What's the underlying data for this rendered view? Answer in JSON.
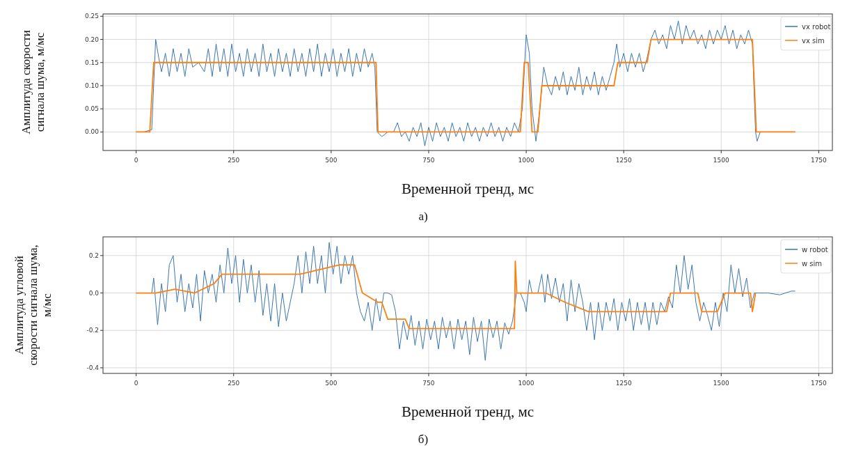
{
  "chart_data": [
    {
      "type": "line",
      "xlabel": "Временной тренд, мс",
      "ylabel": "Амплитуда скорости сигнала шума, м/мс",
      "annotations": [
        "а)"
      ],
      "xlim": [
        -85,
        1785
      ],
      "ylim": [
        -0.04,
        0.255
      ],
      "xticks": [
        0,
        250,
        500,
        750,
        1000,
        1250,
        1500,
        1750
      ],
      "yticks": [
        {
          "value": 0,
          "label": "0.00"
        },
        {
          "value": 0.05,
          "label": "0.05"
        },
        {
          "value": 0.1,
          "label": "0.10"
        },
        {
          "value": 0.15,
          "label": "0.15"
        },
        {
          "value": 0.2,
          "label": "0.20"
        },
        {
          "value": 0.25,
          "label": "0.25"
        }
      ],
      "grid": true,
      "legend": "top right",
      "marker": "none",
      "line_style": "solid",
      "series": [
        {
          "name": "vx robot",
          "color": "#3b76b0",
          "x": [
            0,
            20,
            40,
            50,
            58,
            65,
            75,
            85,
            95,
            105,
            115,
            125,
            135,
            145,
            160,
            175,
            185,
            195,
            205,
            215,
            225,
            235,
            245,
            255,
            265,
            275,
            285,
            295,
            305,
            315,
            325,
            335,
            345,
            355,
            365,
            375,
            385,
            395,
            405,
            415,
            425,
            435,
            445,
            455,
            465,
            475,
            485,
            495,
            505,
            515,
            525,
            535,
            545,
            555,
            565,
            575,
            585,
            595,
            605,
            612,
            618,
            630,
            645,
            660,
            670,
            680,
            690,
            700,
            710,
            720,
            730,
            740,
            750,
            760,
            770,
            780,
            790,
            800,
            810,
            820,
            830,
            840,
            850,
            860,
            870,
            880,
            890,
            900,
            910,
            920,
            930,
            940,
            950,
            960,
            970,
            980,
            990,
            1000,
            1008,
            1015,
            1025,
            1035,
            1045,
            1055,
            1065,
            1075,
            1085,
            1095,
            1105,
            1115,
            1125,
            1135,
            1145,
            1155,
            1165,
            1175,
            1185,
            1195,
            1205,
            1215,
            1225,
            1232,
            1240,
            1250,
            1260,
            1270,
            1280,
            1290,
            1300,
            1310,
            1320,
            1330,
            1340,
            1350,
            1360,
            1370,
            1380,
            1390,
            1400,
            1410,
            1420,
            1430,
            1440,
            1450,
            1460,
            1470,
            1480,
            1490,
            1500,
            1510,
            1520,
            1530,
            1540,
            1550,
            1560,
            1570,
            1580,
            1588,
            1592,
            1600,
            1650,
            1690
          ],
          "values": [
            0,
            0,
            0.005,
            0.2,
            0.16,
            0.13,
            0.17,
            0.12,
            0.18,
            0.13,
            0.17,
            0.12,
            0.18,
            0.14,
            0.15,
            0.13,
            0.18,
            0.12,
            0.19,
            0.13,
            0.18,
            0.12,
            0.19,
            0.13,
            0.17,
            0.12,
            0.18,
            0.13,
            0.17,
            0.12,
            0.19,
            0.13,
            0.17,
            0.12,
            0.18,
            0.13,
            0.17,
            0.12,
            0.18,
            0.13,
            0.17,
            0.12,
            0.18,
            0.13,
            0.19,
            0.12,
            0.17,
            0.13,
            0.18,
            0.12,
            0.17,
            0.13,
            0.18,
            0.12,
            0.17,
            0.13,
            0.18,
            0.14,
            0.17,
            0.14,
            0,
            -0.01,
            0,
            0,
            0.02,
            -0.01,
            0,
            -0.02,
            0.01,
            -0.01,
            0.02,
            -0.03,
            0.01,
            -0.02,
            0.02,
            -0.01,
            0.01,
            -0.02,
            0.02,
            -0.01,
            0.01,
            -0.02,
            0.02,
            -0.01,
            0.01,
            -0.02,
            0.01,
            -0.01,
            0.02,
            -0.01,
            0.01,
            -0.02,
            0.01,
            -0.01,
            0.02,
            0,
            0.05,
            0.21,
            0.17,
            0.05,
            -0.02,
            0.05,
            0.14,
            0.1,
            0.08,
            0.12,
            0.09,
            0.13,
            0.08,
            0.12,
            0.09,
            0.14,
            0.08,
            0.12,
            0.09,
            0.13,
            0.08,
            0.12,
            0.09,
            0.12,
            0.15,
            0.19,
            0.14,
            0.17,
            0.13,
            0.17,
            0.14,
            0.17,
            0.13,
            0.16,
            0.2,
            0.22,
            0.19,
            0.21,
            0.18,
            0.23,
            0.2,
            0.24,
            0.19,
            0.23,
            0.2,
            0.22,
            0.19,
            0.21,
            0.18,
            0.22,
            0.19,
            0.22,
            0.2,
            0.23,
            0.19,
            0.22,
            0.18,
            0.21,
            0.19,
            0.22,
            0.19,
            0,
            -0.02,
            0,
            0,
            0
          ]
        },
        {
          "name": "vx sim",
          "color": "#ff7f0e",
          "x": [
            0,
            35,
            45,
            615,
            620,
            985,
            995,
            1005,
            1015,
            1030,
            1040,
            1225,
            1235,
            1310,
            1320,
            1580,
            1590,
            1690
          ],
          "values": [
            0,
            0,
            0.15,
            0.15,
            0,
            0,
            0.15,
            0.15,
            0,
            0,
            0.1,
            0.1,
            0.15,
            0.15,
            0.2,
            0.2,
            0,
            0
          ]
        }
      ]
    },
    {
      "type": "line",
      "xlabel": "Временной тренд, мс",
      "ylabel": "Амплитуда угловой скорости сигнала шума, м/мс",
      "annotations": [
        "б)"
      ],
      "xlim": [
        -85,
        1785
      ],
      "ylim": [
        -0.43,
        0.3
      ],
      "xticks": [
        0,
        250,
        500,
        750,
        1000,
        1250,
        1500,
        1750
      ],
      "yticks": [
        -0.4,
        -0.2,
        {
          "value": 0,
          "label": "0.0"
        },
        0.2
      ],
      "grid": true,
      "legend": "top right",
      "marker": "none",
      "line_style": "solid",
      "series": [
        {
          "name": "w robot",
          "color": "#3b76b0",
          "x": [
            0,
            30,
            40,
            45,
            55,
            65,
            75,
            85,
            95,
            105,
            115,
            125,
            135,
            145,
            155,
            165,
            175,
            185,
            195,
            205,
            215,
            225,
            235,
            245,
            255,
            265,
            275,
            285,
            295,
            305,
            315,
            325,
            335,
            345,
            355,
            365,
            375,
            385,
            395,
            405,
            415,
            425,
            435,
            445,
            455,
            465,
            475,
            485,
            495,
            505,
            515,
            525,
            535,
            545,
            555,
            565,
            575,
            585,
            595,
            605,
            615,
            625,
            635,
            645,
            655,
            665,
            675,
            685,
            695,
            705,
            715,
            725,
            735,
            745,
            755,
            765,
            775,
            785,
            795,
            805,
            815,
            825,
            835,
            845,
            855,
            865,
            875,
            885,
            895,
            905,
            915,
            925,
            935,
            945,
            955,
            965,
            975,
            985,
            995,
            1000,
            1008,
            1015,
            1030,
            1040,
            1048,
            1055,
            1065,
            1075,
            1085,
            1095,
            1105,
            1115,
            1125,
            1135,
            1145,
            1155,
            1165,
            1175,
            1185,
            1195,
            1205,
            1215,
            1225,
            1235,
            1245,
            1255,
            1265,
            1275,
            1285,
            1295,
            1305,
            1315,
            1325,
            1335,
            1345,
            1355,
            1365,
            1375,
            1385,
            1395,
            1405,
            1415,
            1425,
            1435,
            1445,
            1455,
            1465,
            1475,
            1485,
            1495,
            1505,
            1515,
            1525,
            1535,
            1545,
            1555,
            1565,
            1575,
            1585,
            1595,
            1620,
            1650,
            1680,
            1690
          ],
          "values": [
            0,
            0,
            0,
            0.08,
            -0.17,
            0.05,
            -0.1,
            0.15,
            0.2,
            -0.05,
            0.1,
            -0.1,
            0.05,
            -0.08,
            0.1,
            -0.15,
            0.12,
            0,
            0.1,
            -0.05,
            0.15,
            0,
            0.24,
            0.05,
            0.2,
            -0.05,
            0.18,
            0,
            0.15,
            -0.05,
            0.12,
            -0.12,
            0.05,
            -0.15,
            0.05,
            -0.18,
            0,
            -0.15,
            -0.05,
            0.05,
            0.2,
            0,
            0.22,
            0.05,
            0.25,
            0.05,
            0.2,
            0,
            0.27,
            0.1,
            0.25,
            0.05,
            0.2,
            0.1,
            0.2,
            0,
            -0.1,
            -0.15,
            -0.05,
            -0.2,
            -0.03,
            -0.15,
            0,
            0,
            -0.01,
            -0.1,
            -0.3,
            -0.15,
            -0.25,
            -0.12,
            -0.28,
            -0.15,
            -0.3,
            -0.14,
            -0.25,
            -0.15,
            -0.3,
            -0.13,
            -0.24,
            -0.15,
            -0.3,
            -0.14,
            -0.25,
            -0.15,
            -0.33,
            -0.13,
            -0.26,
            -0.15,
            -0.36,
            -0.14,
            -0.24,
            -0.15,
            -0.3,
            -0.16,
            -0.22,
            -0.15,
            0,
            0,
            -0.05,
            -0.1,
            0.07,
            0,
            0,
            0.1,
            -0.05,
            0.1,
            -0.03,
            0.08,
            -0.05,
            0.05,
            -0.15,
            0.07,
            -0.1,
            0.05,
            -0.05,
            -0.2,
            -0.05,
            -0.25,
            -0.05,
            -0.2,
            -0.05,
            -0.15,
            -0.03,
            -0.2,
            -0.05,
            -0.15,
            -0.03,
            -0.2,
            -0.05,
            -0.17,
            -0.05,
            -0.2,
            -0.05,
            -0.17,
            -0.05,
            -0.1,
            -0.02,
            -0.08,
            0.15,
            0,
            0.2,
            0.02,
            0.15,
            -0.05,
            -0.15,
            -0.05,
            -0.12,
            -0.2,
            -0.05,
            -0.18,
            0,
            -0.1,
            0.15,
            0,
            0.13,
            -0.02,
            0.08,
            -0.08,
            0,
            0,
            0,
            -0.01,
            0.01,
            0.01
          ]
        },
        {
          "name": "w sim",
          "color": "#ff7f0e",
          "x": [
            0,
            35,
            50,
            100,
            150,
            200,
            220,
            400,
            420,
            520,
            560,
            580,
            620,
            630,
            645,
            690,
            700,
            970,
            972,
            976,
            1050,
            1100,
            1160,
            1360,
            1370,
            1440,
            1450,
            1490,
            1510,
            1575,
            1580,
            1588
          ],
          "values": [
            0,
            0,
            0,
            0.02,
            0,
            0.05,
            0.1,
            0.1,
            0.1,
            0.15,
            0.15,
            0,
            -0.05,
            -0.05,
            -0.14,
            -0.14,
            -0.19,
            -0.19,
            0.17,
            0,
            0,
            -0.05,
            -0.1,
            -0.1,
            0,
            0,
            -0.1,
            -0.1,
            0,
            0,
            -0.1,
            0
          ]
        }
      ]
    }
  ]
}
